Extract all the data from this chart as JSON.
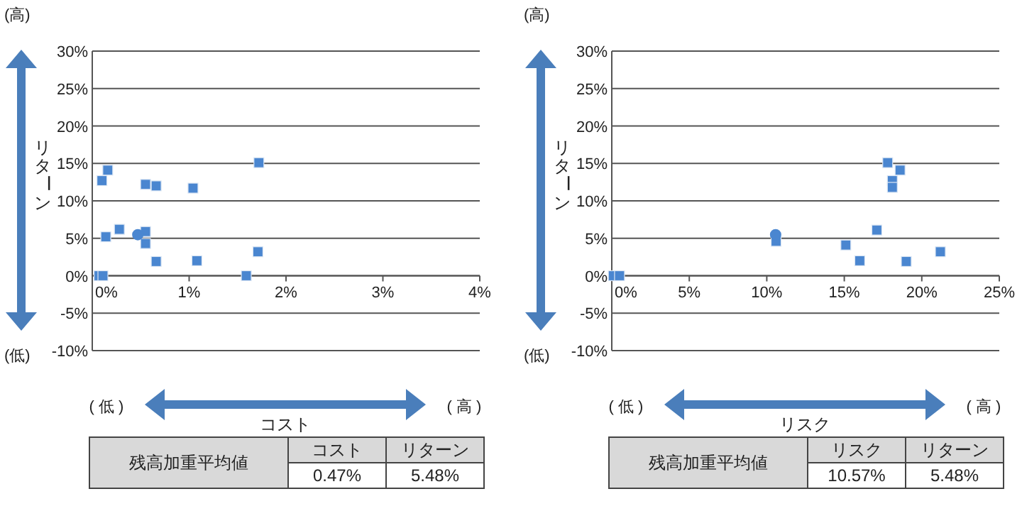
{
  "chart_data": [
    {
      "type": "scatter",
      "xlabel": "コスト",
      "ylabel": "リターン",
      "xlim": [
        0,
        4
      ],
      "xticks": [
        {
          "value": 0,
          "label": "0%"
        },
        {
          "value": 1,
          "label": "1%"
        },
        {
          "value": 2,
          "label": "2%"
        },
        {
          "value": 3,
          "label": "3%"
        },
        {
          "value": 4,
          "label": "4%"
        }
      ],
      "ylim": [
        -10,
        30
      ],
      "yticks": [
        {
          "value": -10,
          "label": "-10%"
        },
        {
          "value": -5,
          "label": "-5%"
        },
        {
          "value": 0,
          "label": "0%"
        },
        {
          "value": 5,
          "label": "5%"
        },
        {
          "value": 10,
          "label": "10%"
        },
        {
          "value": 15,
          "label": "15%"
        },
        {
          "value": 20,
          "label": "20%"
        },
        {
          "value": 25,
          "label": "25%"
        },
        {
          "value": 30,
          "label": "30%"
        }
      ],
      "grid": "y",
      "series": [
        {
          "color": "#4a86d0",
          "marker": "square",
          "x": [
            0.1,
            0.16,
            0.14,
            0.28,
            0.55,
            0.55,
            0.55,
            0.66,
            1.04,
            0.66,
            1.08,
            1.72,
            1.71,
            1.59,
            0.07,
            0.11
          ],
          "values": [
            12.7,
            14.1,
            5.2,
            6.2,
            5.9,
            4.3,
            12.2,
            12.0,
            11.7,
            1.9,
            2.0,
            15.1,
            3.2,
            0.0,
            0.0,
            0.0
          ]
        },
        {
          "color": "#4a86d0",
          "marker": "circle",
          "x": [
            0.47
          ],
          "values": [
            5.48
          ]
        }
      ],
      "annotations": [
        "(高)",
        "(低)",
        "( 低 )",
        "( 高 )",
        "残高加重平均値",
        "コスト",
        "リターン",
        "0.47%",
        "5.48%"
      ]
    },
    {
      "type": "scatter",
      "xlabel": "リスク",
      "ylabel": "リターン",
      "xlim": [
        0,
        25
      ],
      "xticks": [
        {
          "value": 0,
          "label": "0%"
        },
        {
          "value": 5,
          "label": "5%"
        },
        {
          "value": 10,
          "label": "10%"
        },
        {
          "value": 15,
          "label": "15%"
        },
        {
          "value": 20,
          "label": "20%"
        },
        {
          "value": 25,
          "label": "25%"
        }
      ],
      "ylim": [
        -10,
        30
      ],
      "yticks": [
        {
          "value": -10,
          "label": "-10%"
        },
        {
          "value": -5,
          "label": "-5%"
        },
        {
          "value": 0,
          "label": "0%"
        },
        {
          "value": 5,
          "label": "5%"
        },
        {
          "value": 10,
          "label": "10%"
        },
        {
          "value": 15,
          "label": "15%"
        },
        {
          "value": 20,
          "label": "20%"
        },
        {
          "value": 25,
          "label": "25%"
        },
        {
          "value": 30,
          "label": "30%"
        }
      ],
      "grid": "y",
      "series": [
        {
          "color": "#4a86d0",
          "marker": "square",
          "x": [
            0.1,
            0.5,
            10.6,
            15.1,
            16.0,
            17.1,
            17.8,
            18.1,
            18.1,
            18.6,
            19.0,
            21.2
          ],
          "values": [
            0.0,
            0.0,
            4.6,
            4.1,
            2.0,
            6.1,
            15.1,
            12.7,
            11.8,
            14.1,
            1.9,
            3.2
          ]
        },
        {
          "color": "#4a86d0",
          "marker": "circle",
          "x": [
            10.57
          ],
          "values": [
            5.48
          ]
        }
      ],
      "annotations": [
        "(高)",
        "(低)",
        "( 低 )",
        "( 高 )",
        "残高加重平均値",
        "リスク",
        "リターン",
        "10.57%",
        "5.48%"
      ]
    }
  ]
}
